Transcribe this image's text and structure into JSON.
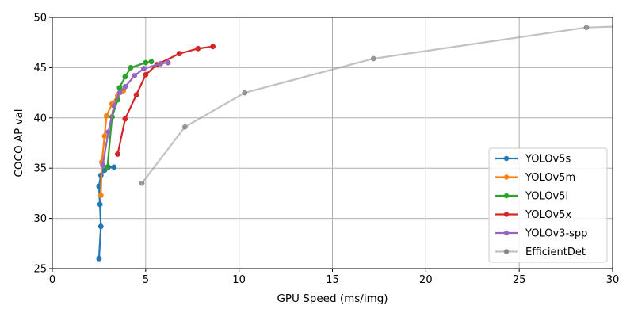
{
  "chart_data": {
    "type": "line",
    "xlabel": "GPU Speed (ms/img)",
    "ylabel": "COCO AP val",
    "xlim": [
      0,
      30
    ],
    "ylim": [
      25,
      50
    ],
    "xticks": [
      0,
      5,
      10,
      15,
      20,
      25,
      30
    ],
    "yticks": [
      25,
      30,
      35,
      40,
      45,
      50
    ],
    "grid": true,
    "legend_position": "lower-right",
    "series": [
      {
        "name": "YOLOv5s",
        "color": "#1f77b4",
        "points": [
          [
            2.5,
            26.0
          ],
          [
            2.6,
            29.2
          ],
          [
            2.55,
            31.4
          ],
          [
            2.5,
            33.2
          ],
          [
            2.6,
            34.3
          ],
          [
            2.8,
            34.8
          ],
          [
            3.0,
            35.1
          ],
          [
            3.3,
            35.1
          ]
        ]
      },
      {
        "name": "YOLOv5m",
        "color": "#ff7f0e",
        "points": [
          [
            2.6,
            32.3
          ],
          [
            2.65,
            35.6
          ],
          [
            2.8,
            38.2
          ],
          [
            2.9,
            40.2
          ],
          [
            3.2,
            41.4
          ],
          [
            3.5,
            42.2
          ],
          [
            3.8,
            42.7
          ]
        ]
      },
      {
        "name": "YOLOv5l",
        "color": "#2ca02c",
        "points": [
          [
            2.95,
            35.1
          ],
          [
            3.2,
            40.1
          ],
          [
            3.5,
            41.8
          ],
          [
            3.6,
            43.0
          ],
          [
            3.9,
            44.1
          ],
          [
            4.2,
            45.0
          ],
          [
            5.0,
            45.5
          ],
          [
            5.3,
            45.6
          ]
        ]
      },
      {
        "name": "YOLOv5x",
        "color": "#d62728",
        "points": [
          [
            3.5,
            36.4
          ],
          [
            3.9,
            39.9
          ],
          [
            4.5,
            42.3
          ],
          [
            5.0,
            44.3
          ],
          [
            5.6,
            45.3
          ],
          [
            6.8,
            46.4
          ],
          [
            7.8,
            46.9
          ],
          [
            8.6,
            47.1
          ]
        ]
      },
      {
        "name": "YOLOv3-spp",
        "color": "#9467bd",
        "points": [
          [
            2.7,
            35.3
          ],
          [
            3.0,
            38.6
          ],
          [
            3.3,
            41.2
          ],
          [
            3.6,
            42.5
          ],
          [
            3.9,
            43.1
          ],
          [
            4.4,
            44.2
          ],
          [
            4.9,
            44.9
          ],
          [
            5.8,
            45.4
          ],
          [
            6.2,
            45.5
          ]
        ]
      },
      {
        "name": "EfficientDet",
        "color": "#999999",
        "points": [
          [
            4.8,
            33.5
          ],
          [
            7.1,
            39.1
          ],
          [
            10.3,
            42.5
          ],
          [
            17.2,
            45.9
          ],
          [
            28.6,
            49.0
          ],
          [
            32.0,
            49.2
          ]
        ]
      }
    ]
  }
}
